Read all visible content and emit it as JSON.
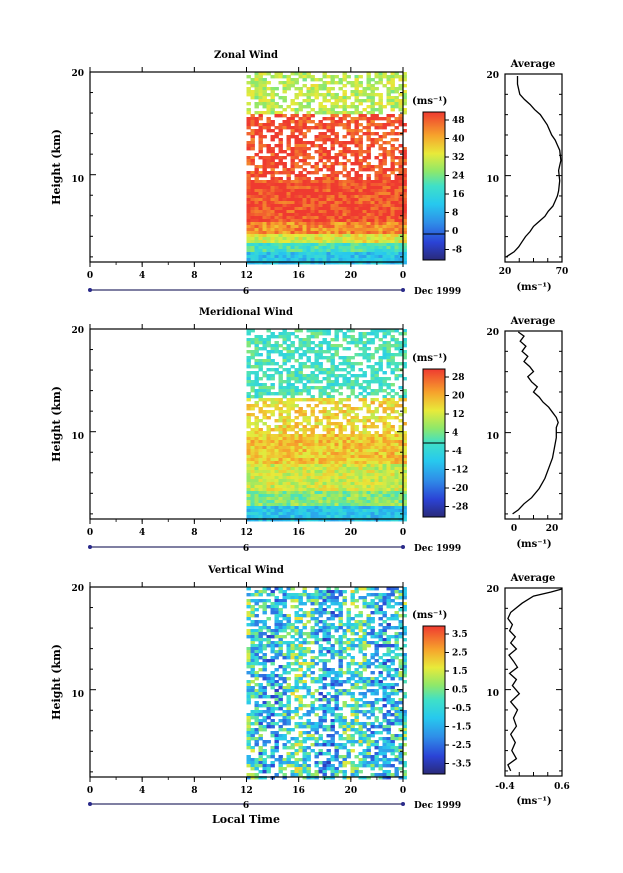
{
  "figure": {
    "xlabel": "Local Time",
    "date_label": "Dec 1999",
    "day_label": "6"
  },
  "chart_data": [
    {
      "type": "heatmap",
      "title": "Zonal Wind",
      "ylabel": "Height (km)",
      "xlim": [
        0,
        24
      ],
      "ylim": [
        1.5,
        20
      ],
      "x_ticks": [
        "0",
        "4",
        "8",
        "12",
        "16",
        "20",
        "0"
      ],
      "y_ticks": [
        10,
        20
      ],
      "data_start_hour": 12,
      "colorbar": {
        "unit": "(ms⁻¹)",
        "ticks": [
          "48",
          "40",
          "32",
          "24",
          "16",
          "8",
          "0",
          "-8"
        ],
        "min": -12,
        "max": 52
      },
      "profile": {
        "title": "Average",
        "unit": "(ms⁻¹)",
        "xlim": [
          20,
          70
        ],
        "x_ticks": [
          "20",
          "70"
        ],
        "y_ticks": [
          10,
          20
        ],
        "x": [
          21,
          28,
          32,
          35,
          38,
          42,
          45,
          50,
          55,
          58,
          62,
          64,
          66,
          67,
          68,
          67,
          68,
          69,
          68,
          66,
          64,
          61,
          57,
          51,
          46,
          42,
          37,
          33,
          31,
          31
        ],
        "y": [
          2,
          2.5,
          3,
          3.5,
          4,
          4.5,
          5,
          5.5,
          6,
          6.5,
          7,
          7.5,
          8,
          8.5,
          9.5,
          10.5,
          11,
          11.5,
          12.5,
          13,
          13.5,
          14,
          15,
          16,
          16.5,
          17,
          17.5,
          18,
          19,
          19.8
        ]
      },
      "field_bands": [
        {
          "from": 1.5,
          "to": 2.5,
          "value": 12
        },
        {
          "from": 2.5,
          "to": 3.6,
          "value": 20
        },
        {
          "from": 3.6,
          "to": 4.5,
          "value": 34
        },
        {
          "from": 4.5,
          "to": 5.5,
          "value": 44
        },
        {
          "from": 5.5,
          "to": 9.5,
          "value": 50
        },
        {
          "from": 9.5,
          "to": 16,
          "value": 50,
          "gappy": true
        },
        {
          "from": 16,
          "to": 20,
          "value": 30,
          "gappy": true
        }
      ]
    },
    {
      "type": "heatmap",
      "title": "Meridional Wind",
      "ylabel": "Height (km)",
      "xlim": [
        0,
        24
      ],
      "ylim": [
        1.5,
        20
      ],
      "x_ticks": [
        "0",
        "4",
        "8",
        "12",
        "16",
        "20",
        "0"
      ],
      "y_ticks": [
        10,
        20
      ],
      "data_start_hour": 12,
      "colorbar": {
        "unit": "(ms⁻¹)",
        "ticks": [
          "28",
          "20",
          "12",
          "4",
          "-4",
          "-12",
          "-20",
          "-28"
        ],
        "min": -32,
        "max": 32
      },
      "profile": {
        "title": "Average",
        "unit": "(ms⁻¹)",
        "xlim": [
          -5,
          25
        ],
        "x_ticks": [
          "0",
          "20"
        ],
        "y_ticks": [
          10,
          20
        ],
        "x": [
          -1,
          2,
          5,
          9,
          13,
          16,
          18,
          20,
          21,
          22,
          22,
          23,
          22,
          20,
          18,
          15,
          13,
          10,
          12,
          9,
          7,
          10,
          8,
          5,
          7,
          4,
          6,
          3,
          5,
          2
        ],
        "y": [
          2,
          2.4,
          3,
          3.6,
          4.5,
          5.5,
          6.5,
          7.5,
          8.5,
          9.5,
          10.5,
          11,
          11.5,
          12,
          12.5,
          13,
          13.5,
          14,
          14.5,
          15,
          15.5,
          16,
          16.5,
          17,
          17.5,
          18,
          18.5,
          19,
          19.5,
          19.9
        ]
      },
      "field_bands": [
        {
          "from": 1.5,
          "to": 3,
          "value": -8
        },
        {
          "from": 3,
          "to": 4.5,
          "value": 6
        },
        {
          "from": 4.5,
          "to": 7,
          "value": 12
        },
        {
          "from": 7,
          "to": 10,
          "value": 18
        },
        {
          "from": 10,
          "to": 13.5,
          "value": 16,
          "gappy": true
        },
        {
          "from": 13.5,
          "to": 20,
          "value": 0,
          "gappy": true
        }
      ]
    },
    {
      "type": "heatmap",
      "title": "Vertical Wind",
      "ylabel": "Height (km)",
      "xlabel": "Local Time",
      "xlim": [
        0,
        24
      ],
      "ylim": [
        1.5,
        20
      ],
      "x_ticks": [
        "0",
        "4",
        "8",
        "12",
        "16",
        "20",
        "0"
      ],
      "y_ticks": [
        10,
        20
      ],
      "data_start_hour": 12,
      "colorbar": {
        "unit": "(ms⁻¹)",
        "ticks": [
          "3.5",
          "2.5",
          "1.5",
          "0.5",
          "-0.5",
          "-1.5",
          "-2.5",
          "-3.5"
        ],
        "min": -4,
        "max": 4
      },
      "profile": {
        "title": "Average",
        "unit": "(ms⁻¹)",
        "xlim": [
          -0.4,
          0.6
        ],
        "x_ticks": [
          "-0.4",
          "0.6"
        ],
        "y_ticks": [
          10,
          20
        ],
        "x": [
          -0.3,
          -0.35,
          -0.2,
          -0.28,
          -0.22,
          -0.3,
          -0.2,
          -0.25,
          -0.18,
          -0.3,
          -0.15,
          -0.27,
          -0.2,
          -0.32,
          -0.18,
          -0.25,
          -0.33,
          -0.2,
          -0.3,
          -0.22,
          -0.32,
          -0.27,
          -0.35,
          -0.3,
          -0.1,
          0.1,
          0.4,
          0.6
        ],
        "y": [
          2,
          2.6,
          3.2,
          4,
          4.8,
          5.6,
          6.4,
          7.2,
          8,
          8.8,
          9.6,
          10.4,
          11,
          11.6,
          12.2,
          12.8,
          13.4,
          14,
          14.6,
          15.2,
          15.8,
          16.4,
          17,
          17.6,
          18.5,
          19.2,
          19.6,
          19.9
        ]
      },
      "field_bands": [
        {
          "from": 1.5,
          "to": 20,
          "value": -0.6,
          "gappy": true
        }
      ]
    }
  ]
}
